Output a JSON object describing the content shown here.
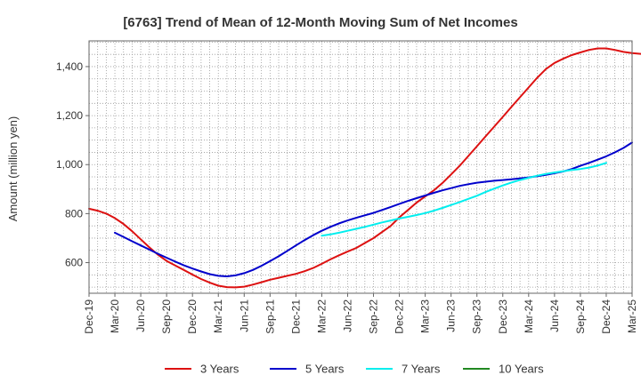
{
  "chart_data": {
    "type": "line",
    "title": "[6763]  Trend of Mean of 12-Month Moving Sum of Net Incomes",
    "ylabel": "Amount (million yen)",
    "xlabel": "",
    "x_tick_labels": [
      "Dec-19",
      "Mar-20",
      "Jun-20",
      "Sep-20",
      "Dec-20",
      "Mar-21",
      "Jun-21",
      "Sep-21",
      "Dec-21",
      "Mar-22",
      "Jun-22",
      "Sep-22",
      "Dec-22",
      "Mar-23",
      "Jun-23",
      "Sep-23",
      "Dec-23",
      "Mar-24",
      "Jun-24",
      "Sep-24",
      "Dec-24",
      "Mar-25"
    ],
    "y_ticks": [
      600,
      800,
      1000,
      1200,
      1400
    ],
    "y_tick_labels": [
      "600",
      "800",
      "1,000",
      "1,200",
      "1,400"
    ],
    "ylim": [
      475,
      1505
    ],
    "grid": true,
    "legend_position": "bottom",
    "series": [
      {
        "name": "3 Years",
        "color": "#dd1111",
        "start_index": 0,
        "values": [
          820,
          812,
          800,
          782,
          758,
          728,
          695,
          662,
          632,
          607,
          588,
          570,
          551,
          533,
          518,
          506,
          500,
          499,
          502,
          510,
          520,
          530,
          538,
          546,
          554,
          565,
          578,
          595,
          613,
          630,
          645,
          660,
          680,
          700,
          725,
          750,
          785,
          815,
          845,
          870,
          895,
          925,
          960,
          995,
          1035,
          1075,
          1115,
          1155,
          1195,
          1235,
          1275,
          1315,
          1355,
          1390,
          1415,
          1432,
          1447,
          1458,
          1468,
          1474,
          1474,
          1468,
          1460,
          1455,
          1452,
          1450
        ]
      },
      {
        "name": "5 Years",
        "color": "#0000cc",
        "start_index": 3,
        "values": [
          722,
          705,
          687,
          670,
          653,
          636,
          620,
          604,
          589,
          576,
          564,
          553,
          546,
          544,
          548,
          557,
          570,
          587,
          606,
          626,
          648,
          670,
          692,
          712,
          730,
          746,
          760,
          772,
          783,
          793,
          803,
          815,
          827,
          840,
          852,
          863,
          874,
          885,
          895,
          904,
          913,
          920,
          926,
          930,
          934,
          937,
          940,
          944,
          948,
          953,
          958,
          965,
          972,
          982,
          995,
          1007,
          1020,
          1034,
          1050,
          1068,
          1090
        ]
      },
      {
        "name": "7 Years",
        "color": "#00eeee",
        "start_index": 27,
        "values": [
          710,
          715,
          722,
          730,
          738,
          746,
          755,
          764,
          772,
          780,
          787,
          794,
          802,
          812,
          823,
          835,
          847,
          860,
          873,
          888,
          902,
          915,
          927,
          937,
          946,
          955,
          962,
          968,
          973,
          978,
          982,
          988,
          996,
          1007
        ]
      },
      {
        "name": "10 Years",
        "color": "#228822",
        "start_index": 0,
        "values": []
      }
    ]
  }
}
